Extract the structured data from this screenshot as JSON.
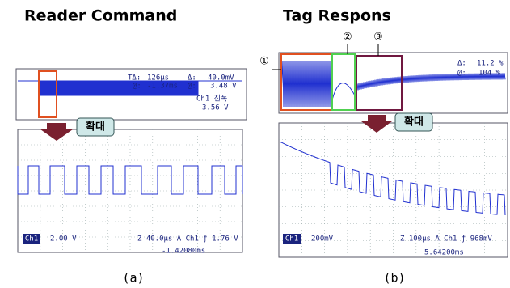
{
  "panels": [
    {
      "title": "Reader Command",
      "caption": "(a)",
      "zoom_label": "확대",
      "overview_readouts": [
        "TΔ:",
        "126µs",
        "Δ:",
        "40.0mV",
        "@:",
        "-1.37ms",
        "@:",
        "3.48 V",
        "Ch1 진폭",
        "3.56 V"
      ],
      "detail_readouts": [
        "Ch1",
        "2.00 V",
        "Z 40.0µs A Ch1 ƒ 1.76 V",
        "-1.42080ms"
      ]
    },
    {
      "title": "Tag Respons",
      "caption": "(b)",
      "zoom_label": "확대",
      "markers": [
        "①",
        "②",
        "③"
      ],
      "overview_readouts": [
        "Δ:",
        "11.2 %",
        "@:",
        "104 %"
      ],
      "detail_readouts": [
        "Ch1",
        "200mV",
        "Z 100µs A Ch1 ƒ 968mV",
        "5.64200ms"
      ]
    }
  ]
}
